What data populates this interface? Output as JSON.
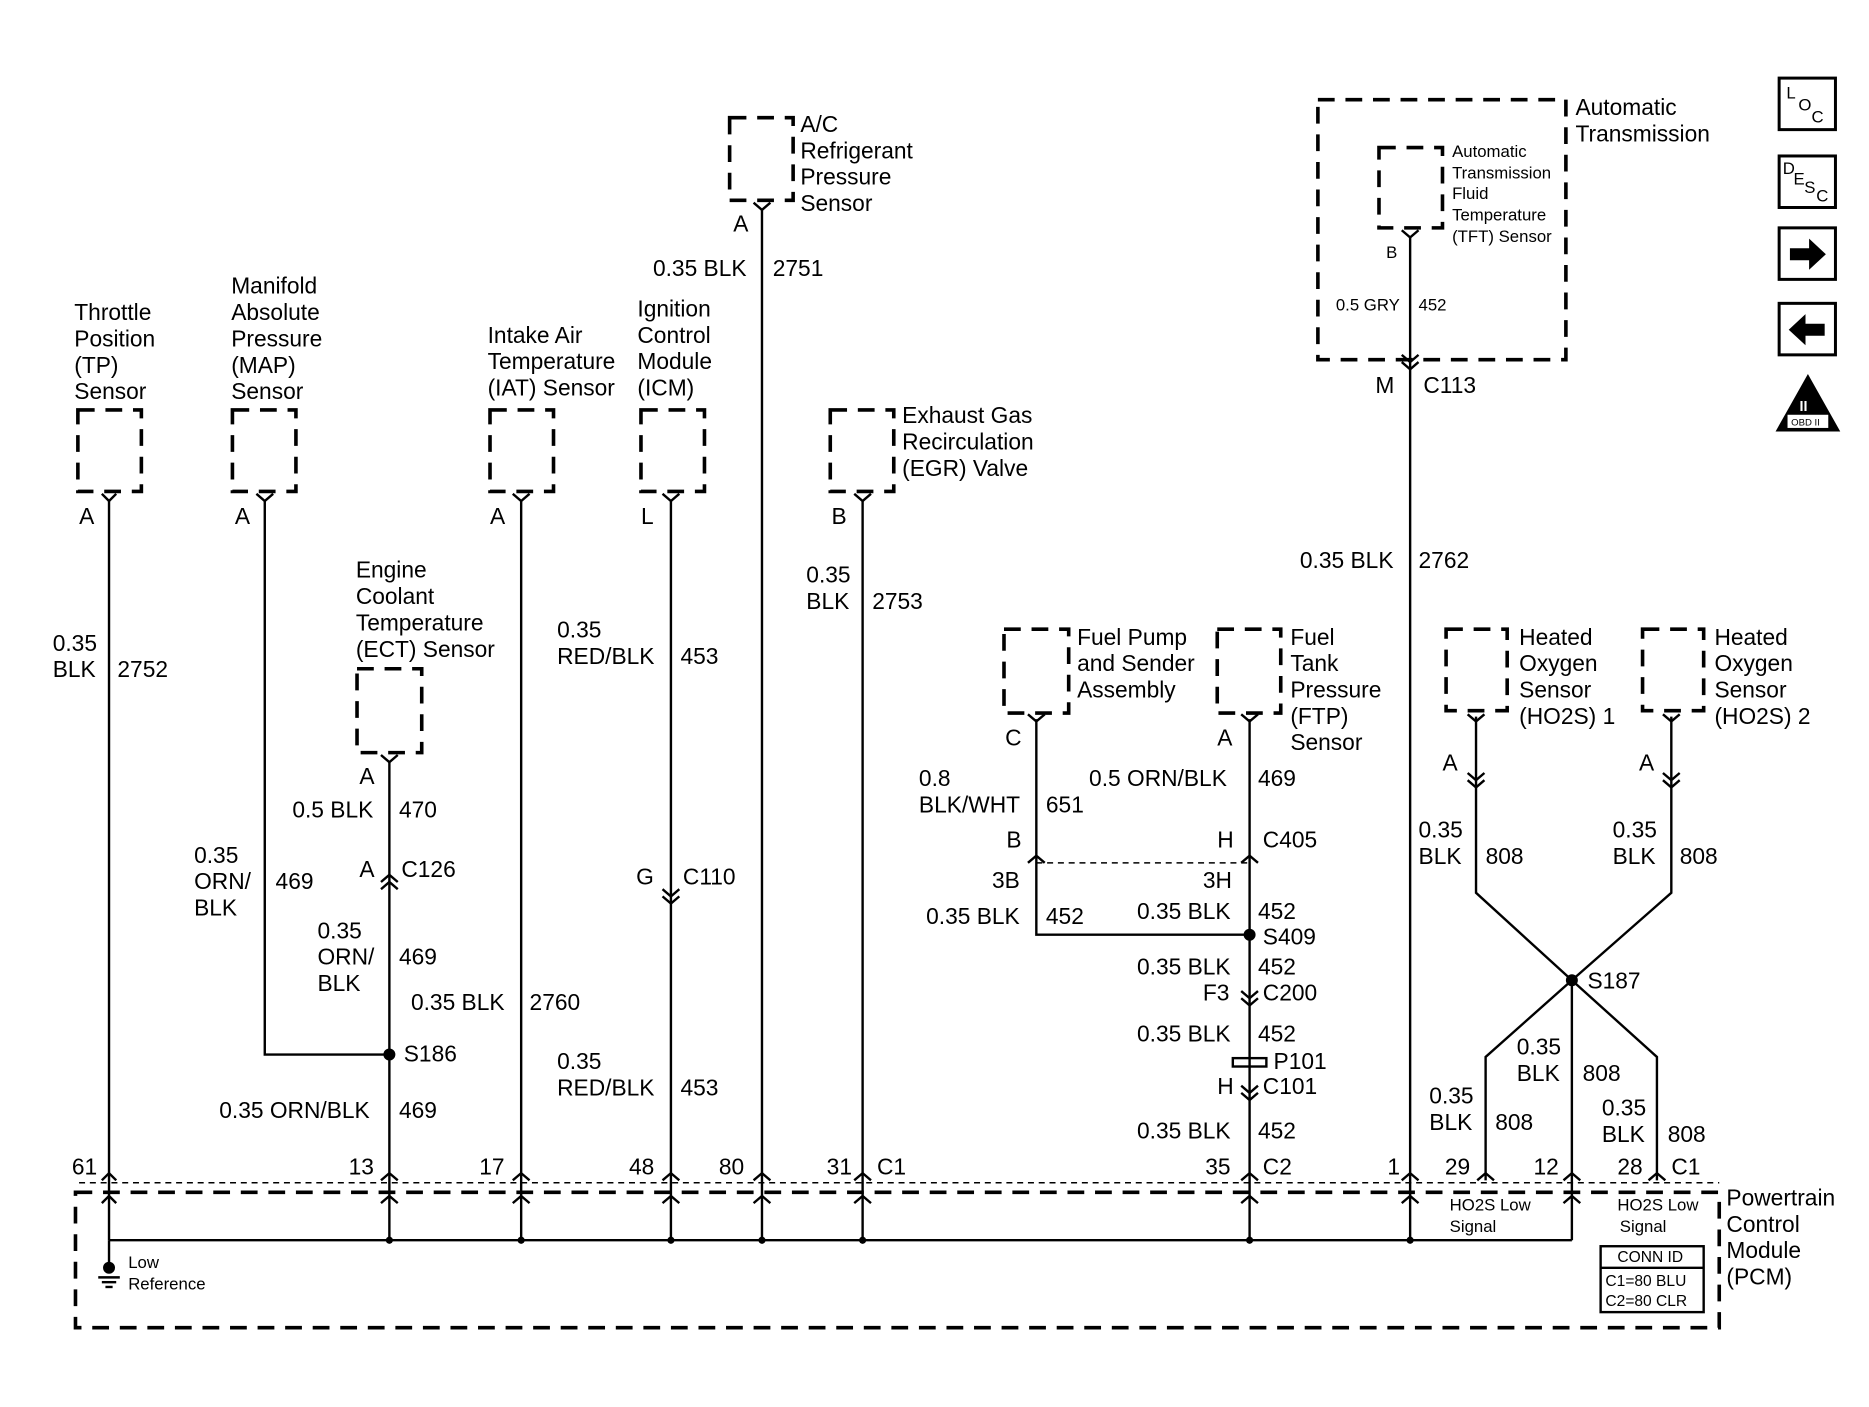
{
  "components": {
    "tp": [
      "Throttle",
      "Position",
      "(TP)",
      "Sensor"
    ],
    "map": [
      "Manifold",
      "Absolute",
      "Pressure",
      "(MAP)",
      "Sensor"
    ],
    "ect": [
      "Engine",
      "Coolant",
      "Temperature",
      "(ECT) Sensor"
    ],
    "iat": [
      "Intake Air",
      "Temperature",
      "(IAT) Sensor"
    ],
    "icm": [
      "Ignition",
      "Control",
      "Module",
      "(ICM)"
    ],
    "ac": [
      "A/C",
      "Refrigerant",
      "Pressure",
      "Sensor"
    ],
    "egr": [
      "Exhaust Gas",
      "Recirculation",
      "(EGR) Valve"
    ],
    "fuelpump": [
      "Fuel Pump",
      "and Sender",
      "Assembly"
    ],
    "ftp": [
      "Fuel",
      "Tank",
      "Pressure",
      "(FTP)",
      "Sensor"
    ],
    "trans": [
      "Automatic",
      "Transmission"
    ],
    "tft": [
      "Automatic",
      "Transmission",
      "Fluid",
      "Temperature",
      "(TFT) Sensor"
    ],
    "ho2s1": [
      "Heated",
      "Oxygen",
      "Sensor",
      "(HO2S) 1"
    ],
    "ho2s2": [
      "Heated",
      "Oxygen",
      "Sensor",
      "(HO2S) 2"
    ],
    "pcm": [
      "Powertrain",
      "Control",
      "Module",
      "(PCM)"
    ]
  },
  "labels": {
    "tp_pin": "A",
    "tp_w1": "0.35",
    "tp_w2": "BLK",
    "tp_c": "2752",
    "tp_p": "61",
    "map_pin": "A",
    "map_w1": "0.35",
    "map_w2": "ORN/",
    "map_w3": "BLK",
    "map_c": "469",
    "ect_pin": "A",
    "ect_w": "0.5 BLK",
    "ect_c": "470",
    "c126_pin": "A",
    "c126": "C126",
    "ect_w1": "0.35",
    "ect_w2": "ORN/",
    "ect_w3": "BLK",
    "ect_c2": "469",
    "s186": "S186",
    "ect_w4": "0.35 ORN/BLK",
    "ect_c3": "469",
    "ect_p": "13",
    "iat_pin": "A",
    "iat_w": "0.35 BLK",
    "iat_c": "2760",
    "iat_p": "17",
    "icm_pin": "L",
    "icm_w1": "0.35",
    "icm_w2": "RED/BLK",
    "icm_c": "453",
    "c110_pin": "G",
    "c110": "C110",
    "icm_w3": "0.35",
    "icm_w4": "RED/BLK",
    "icm_c2": "453",
    "icm_p": "48",
    "ac_pin": "A",
    "ac_w": "0.35 BLK",
    "ac_c": "2751",
    "ac_p": "80",
    "egr_pin": "B",
    "egr_w1": "0.35",
    "egr_w2": "BLK",
    "egr_c": "2753",
    "egr_p": "31",
    "c1": "C1",
    "fp_pin": "C",
    "fp_w1": "0.8",
    "fp_w2": "BLK/WHT",
    "fp_c": "651",
    "fp_b": "B",
    "fp_3b": "3B",
    "fp_w3": "0.35 BLK",
    "fp_c2": "452",
    "ftp_pin": "A",
    "ftp_w": "0.5 ORN/BLK",
    "ftp_c": "469",
    "c405_pin": "H",
    "c405": "C405",
    "ftp_3h": "3H",
    "ftp_w2": "0.35 BLK",
    "ftp_c2": "452",
    "s409": "S409",
    "ftp_w3": "0.35 BLK",
    "ftp_c3": "452",
    "c200_pin": "F3",
    "c200": "C200",
    "ftp_w4": "0.35 BLK",
    "ftp_c4": "452",
    "p101": "P101",
    "c101_pin": "H",
    "c101": "C101",
    "ftp_w5": "0.35 BLK",
    "ftp_c5": "452",
    "ftp_p": "35",
    "c2": "C2",
    "tft_pin": "B",
    "tft_w": "0.5 GRY",
    "tft_c": "452",
    "c113_pin": "M",
    "c113": "C113",
    "tft_w2": "0.35 BLK",
    "tft_c2": "2762",
    "tft_p": "1",
    "h1_pin": "A",
    "h1_w1": "0.35",
    "h1_w2": "BLK",
    "h1_c": "808",
    "h2_pin": "A",
    "h2_w1": "0.35",
    "h2_w2": "BLK",
    "h2_c": "808",
    "s187": "S187",
    "m_w1": "0.35",
    "m_w2": "BLK",
    "m_c": "808",
    "l_w1": "0.35",
    "l_w2": "BLK",
    "l_c": "808",
    "r_w1": "0.35",
    "r_w2": "BLK",
    "r_c": "808",
    "p29": "29",
    "p12": "12",
    "p28": "28",
    "c1b": "C1",
    "ho2s_low1a": "HO2S Low",
    "ho2s_low1b": "Signal",
    "ho2s_low2a": "HO2S Low",
    "ho2s_low2b": "Signal",
    "low_ref1": "Low",
    "low_ref2": "Reference"
  },
  "conn_id": {
    "title": "CONN ID",
    "c1": "C1=80 BLU",
    "c2": "C2=80 CLR"
  },
  "nav_icons": {
    "loc": [
      "L",
      "O",
      "C"
    ],
    "desc": [
      "D",
      "E",
      "S",
      "C"
    ],
    "next": "arrow-right-icon",
    "prev": "arrow-left-icon",
    "obd": [
      "II",
      "OBD II"
    ]
  }
}
